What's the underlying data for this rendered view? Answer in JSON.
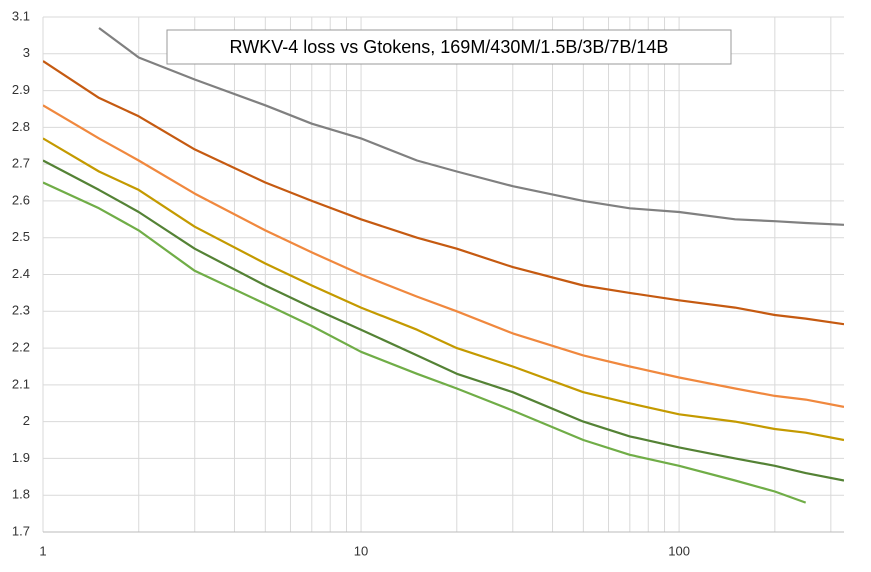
{
  "chart_data": {
    "type": "line",
    "title": "RWKV-4 loss vs Gtokens, 169M/430M/1.5B/3B/7B/14B",
    "x": [
      1,
      1.5,
      2,
      3,
      5,
      7,
      10,
      15,
      20,
      30,
      50,
      70,
      100,
      150,
      200,
      250,
      330
    ],
    "series": [
      {
        "color": "#808080",
        "values": [
          null,
          3.07,
          2.99,
          2.93,
          2.86,
          2.81,
          2.77,
          2.71,
          2.68,
          2.64,
          2.6,
          2.58,
          2.57,
          2.55,
          2.545,
          2.54,
          2.535
        ]
      },
      {
        "color": "#c55a11",
        "values": [
          2.98,
          2.88,
          2.83,
          2.74,
          2.65,
          2.6,
          2.55,
          2.5,
          2.47,
          2.42,
          2.37,
          2.35,
          2.33,
          2.31,
          2.29,
          2.28,
          2.265
        ]
      },
      {
        "color": "#f0883e",
        "values": [
          2.86,
          2.77,
          2.71,
          2.62,
          2.52,
          2.46,
          2.4,
          2.34,
          2.3,
          2.24,
          2.18,
          2.15,
          2.12,
          2.09,
          2.07,
          2.06,
          2.04
        ]
      },
      {
        "color": "#c49a00",
        "values": [
          2.77,
          2.68,
          2.63,
          2.53,
          2.43,
          2.37,
          2.31,
          2.25,
          2.2,
          2.15,
          2.08,
          2.05,
          2.02,
          2.0,
          1.98,
          1.97,
          1.95
        ]
      },
      {
        "color": "#548235",
        "values": [
          2.71,
          2.63,
          2.57,
          2.47,
          2.37,
          2.31,
          2.25,
          2.18,
          2.13,
          2.08,
          2.0,
          1.96,
          1.93,
          1.9,
          1.88,
          1.86,
          1.84
        ]
      },
      {
        "color": "#70ad47",
        "values": [
          2.65,
          2.58,
          2.52,
          2.41,
          2.32,
          2.26,
          2.19,
          2.13,
          2.09,
          2.03,
          1.95,
          1.91,
          1.88,
          1.84,
          1.81,
          1.78,
          null
        ]
      }
    ],
    "xlim": [
      1,
      330
    ],
    "xticks": [
      1,
      10,
      100
    ],
    "xscale": "log",
    "ylim": [
      1.7,
      3.1
    ],
    "yticks": [
      1.7,
      1.8,
      1.9,
      2,
      2.1,
      2.2,
      2.3,
      2.4,
      2.5,
      2.6,
      2.7,
      2.8,
      2.9,
      3,
      3.1
    ],
    "grid": true
  }
}
